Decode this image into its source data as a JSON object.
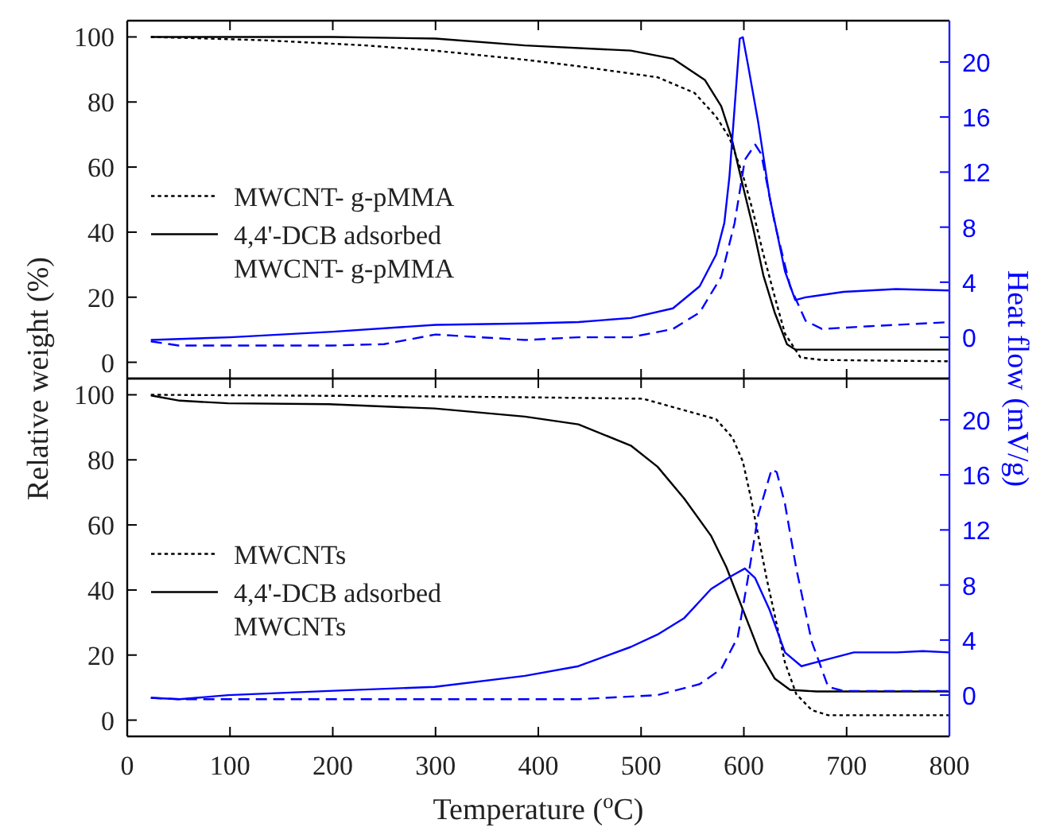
{
  "chart_data": [
    {
      "type": "line",
      "xlim": [
        0,
        800
      ],
      "xticks": [
        0,
        100,
        200,
        300,
        400,
        500,
        600,
        700,
        800
      ],
      "ylim": [
        -5,
        105
      ],
      "yticks": [
        0,
        20,
        40,
        60,
        80,
        100
      ],
      "y2lim": [
        -3,
        23
      ],
      "y2ticks": [
        0,
        4,
        8,
        12,
        16,
        20
      ],
      "tick_labels": "y",
      "legend": "left",
      "series": [
        {
          "name": "MWCNT- g-pMMA",
          "color": "#000000",
          "line_style": "dotted",
          "x": [
            23,
            132,
            232,
            299,
            387,
            439,
            516,
            552,
            573,
            586,
            599,
            609,
            619,
            630,
            640,
            655,
            676,
            800
          ],
          "values": [
            100,
            99,
            97.4,
            95.8,
            93,
            91,
            87.6,
            82.8,
            75.5,
            69,
            57.6,
            46.2,
            33.2,
            20.2,
            8.8,
            1.5,
            0.7,
            0.3
          ]
        },
        {
          "name": "4,4'-DCB adsorbed MWCNT- g-pMMA",
          "color": "#000000",
          "line_style": "solid",
          "x": [
            23,
            200,
            300,
            387,
            490,
            531,
            562,
            578,
            588,
            599,
            609,
            619,
            630,
            642,
            650,
            800
          ],
          "values": [
            100,
            100,
            99.5,
            97.4,
            95.8,
            93.3,
            86.8,
            78.7,
            69,
            54.3,
            41.3,
            26.7,
            15.3,
            5.5,
            3.9,
            3.9
          ]
        },
        {
          "color": "#0000ff",
          "axis": "y2",
          "line_style": "solid",
          "x": [
            23,
            100,
            200,
            300,
            387,
            439,
            490,
            531,
            557,
            573,
            581,
            586,
            591,
            596,
            599,
            604,
            614,
            625,
            640,
            650,
            660,
            697,
            748,
            800
          ],
          "values": [
            -0.2,
            0,
            0.4,
            0.9,
            1,
            1.1,
            1.4,
            2.1,
            3.7,
            6,
            8.3,
            11.7,
            16.7,
            21.7,
            21.8,
            19.8,
            15.6,
            10.2,
            4.8,
            2.7,
            2.9,
            3.3,
            3.5,
            3.4
          ]
        },
        {
          "color": "#0000ff",
          "axis": "y2",
          "line_style": "dashed",
          "x": [
            23,
            50,
            200,
            250,
            300,
            387,
            439,
            490,
            531,
            557,
            578,
            591,
            601,
            611,
            617,
            630,
            645,
            660,
            676,
            722,
            800
          ],
          "values": [
            -0.3,
            -0.6,
            -0.6,
            -0.5,
            0.2,
            -0.2,
            0,
            0,
            0.6,
            1.8,
            4.4,
            8.3,
            12.9,
            14,
            13.3,
            8.3,
            3.7,
            1.2,
            0.6,
            0.8,
            1.1
          ]
        }
      ]
    },
    {
      "type": "line",
      "xlabel": "Temperature ($^{o}$C)",
      "ylabel": "Relative weight (%)",
      "y2label": "Heat flow (mV/g)",
      "xlim": [
        0,
        800
      ],
      "xticks": [
        0,
        100,
        200,
        300,
        400,
        500,
        600,
        700,
        800
      ],
      "ylim": [
        -5,
        105
      ],
      "yticks": [
        0,
        20,
        40,
        60,
        80,
        100
      ],
      "y2lim": [
        -3,
        23
      ],
      "y2ticks": [
        0,
        4,
        8,
        12,
        16,
        20
      ],
      "legend": "left",
      "series": [
        {
          "name": "MWCNTs",
          "color": "#000000",
          "line_style": "dotted",
          "x": [
            23,
            300,
            400,
            502,
            573,
            589,
            599,
            607,
            615,
            622,
            630,
            640,
            651,
            666,
            682,
            800
          ],
          "values": [
            100,
            99.5,
            99.2,
            98.8,
            92.5,
            86.8,
            79.5,
            68.1,
            55.1,
            43.8,
            32.3,
            17.7,
            8,
            3.1,
            1.5,
            1.5
          ]
        },
        {
          "name": "4,4'-DCB adsorbed MWCNTs",
          "color": "#000000",
          "line_style": "solid",
          "x": [
            23,
            51,
            98,
            196,
            299,
            387,
            439,
            490,
            516,
            542,
            568,
            583,
            599,
            615,
            630,
            645,
            671,
            800
          ],
          "values": [
            99.8,
            98.2,
            97.4,
            97.1,
            95.8,
            93.3,
            90.9,
            84.4,
            77.9,
            68.1,
            56.7,
            47,
            34,
            21,
            12.8,
            9.3,
            8.8,
            8.8
          ]
        },
        {
          "color": "#0000ff",
          "axis": "y2",
          "line_style": "solid",
          "x": [
            23,
            51,
            98,
            196,
            299,
            387,
            439,
            490,
            516,
            542,
            568,
            589,
            601,
            611,
            625,
            640,
            656,
            676,
            707,
            749,
            774,
            800
          ],
          "values": [
            -0.2,
            -0.3,
            0,
            0.3,
            0.6,
            1.4,
            2.1,
            3.5,
            4.4,
            5.6,
            7.7,
            8.7,
            9.2,
            8.5,
            6.2,
            3.1,
            2.1,
            2.5,
            3.1,
            3.1,
            3.2,
            3.1
          ]
        },
        {
          "color": "#0000ff",
          "axis": "y2",
          "line_style": "dashed",
          "x": [
            23,
            51,
            200,
            439,
            516,
            557,
            578,
            594,
            604,
            614,
            627,
            632,
            640,
            651,
            666,
            682,
            697,
            800
          ],
          "values": [
            -0.2,
            -0.3,
            -0.3,
            -0.3,
            0,
            0.8,
            1.9,
            4.2,
            8.5,
            13.1,
            16.4,
            16.2,
            13.9,
            9.2,
            3.9,
            0.6,
            0.3,
            0.3
          ]
        }
      ]
    }
  ]
}
